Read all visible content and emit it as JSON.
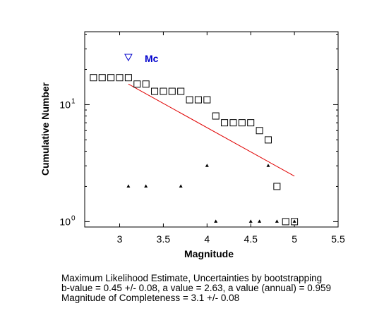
{
  "chart_data": {
    "type": "scatter",
    "title": "",
    "xlabel": "Magnitude",
    "ylabel": "Cumulative Number",
    "xlim": [
      2.6,
      5.5
    ],
    "ylim": [
      0.9,
      42
    ],
    "yscale": "log",
    "grid": false,
    "x_ticks": [
      3,
      3.5,
      4,
      4.5,
      5,
      5.5
    ],
    "x_tick_labels": [
      "3",
      "3.5",
      "4",
      "4.5",
      "5",
      "5.5"
    ],
    "y_ticks": [
      1,
      10
    ],
    "y_tick_base": "10",
    "y_tick_exponents": [
      "0",
      "1"
    ],
    "cumulative": {
      "marker": "square",
      "x": [
        2.7,
        2.8,
        2.9,
        3.0,
        3.1,
        3.2,
        3.3,
        3.4,
        3.5,
        3.6,
        3.7,
        3.8,
        3.9,
        4.0,
        4.1,
        4.2,
        4.3,
        4.4,
        4.5,
        4.6,
        4.7,
        4.8,
        4.9,
        5.0
      ],
      "y": [
        17,
        17,
        17,
        17,
        17,
        15,
        15,
        13,
        13,
        13,
        13,
        11,
        11,
        11,
        8,
        7,
        7,
        7,
        7,
        6,
        5,
        2,
        1,
        1
      ]
    },
    "noncumulative": {
      "marker": "triangle",
      "x": [
        3.1,
        3.3,
        3.7,
        4.0,
        4.1,
        4.5,
        4.6,
        4.7,
        4.8,
        5.0
      ],
      "y": [
        2,
        2,
        2,
        3,
        1,
        1,
        1,
        3,
        1,
        1
      ]
    },
    "fit_line": {
      "color": "#e00000",
      "x": [
        3.1,
        5.0
      ],
      "y": [
        15,
        2.45
      ]
    },
    "mc_marker": {
      "label": "Mc",
      "x": 3.1,
      "y": 25.5,
      "marker": "triangle-down",
      "color": "#0000cc"
    }
  },
  "stats_text": {
    "line1": "Maximum Likelihood Estimate, Uncertainties by bootstrapping",
    "line2": "b-value = 0.45 +/- 0.08,  a value = 2.63,  a value (annual) = 0.959",
    "line3": "Magnitude of Completeness = 3.1 +/- 0.08"
  }
}
